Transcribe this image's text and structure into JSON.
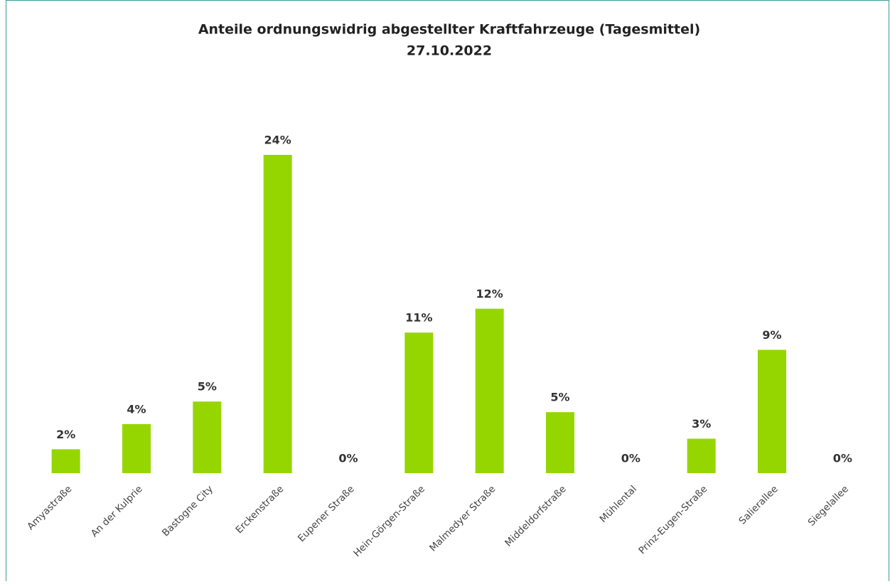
{
  "chart_data": {
    "type": "bar",
    "title": "Anteile ordnungswidrig abgestellter Kraftfahrzeuge (Tagesmittel)",
    "subtitle": "27.10.2022",
    "categories": [
      "Amyastraße",
      "An der Kulprie",
      "Bastogne City",
      "Erckenstraße",
      "Eupener Straße",
      "Hein-Görgen-Straße",
      "Malmedyer Straße",
      "Middeldorfstraße",
      "Mühlental",
      "Prinz-Eugen-Straße",
      "Salierallee",
      "Siegelallee"
    ],
    "values": [
      1.8,
      3.7,
      5.4,
      24.0,
      0,
      10.6,
      12.4,
      4.6,
      0,
      2.6,
      9.3,
      0
    ],
    "value_labels": [
      "2%",
      "4%",
      "5%",
      "24%",
      "0%",
      "11%",
      "12%",
      "5%",
      "0%",
      "3%",
      "9%",
      "0%"
    ],
    "color": "#95d600"
  }
}
